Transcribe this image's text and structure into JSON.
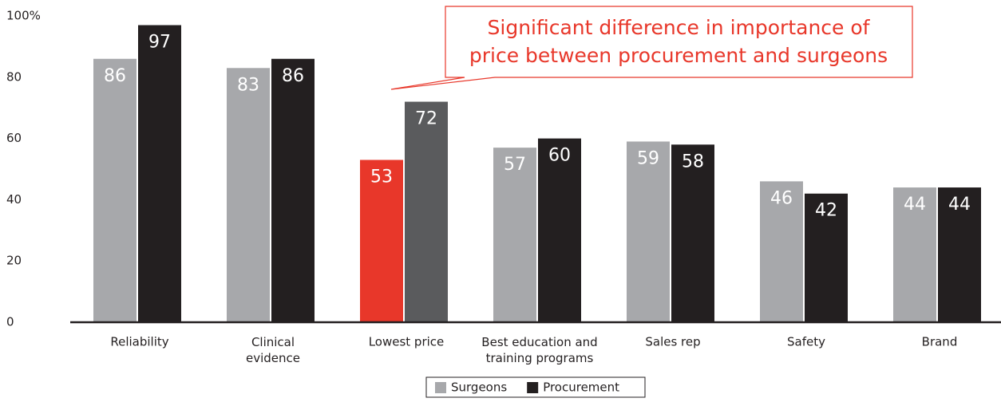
{
  "chart_data": {
    "type": "bar",
    "categories": [
      "Reliability",
      "Clinical\nevidence",
      "Lowest price",
      "Best education and\ntraining programs",
      "Sales rep",
      "Safety",
      "Brand"
    ],
    "series": [
      {
        "name": "Surgeons",
        "color": "#a7a8ab",
        "colors": [
          "#a7a8ab",
          "#a7a8ab",
          "#e8372a",
          "#a7a8ab",
          "#a7a8ab",
          "#a7a8ab",
          "#a7a8ab"
        ],
        "values": [
          86,
          83,
          53,
          57,
          59,
          46,
          44
        ]
      },
      {
        "name": "Procurement",
        "color": "#231f20",
        "colors": [
          "#231f20",
          "#231f20",
          "#5a5b5d",
          "#231f20",
          "#231f20",
          "#231f20",
          "#231f20"
        ],
        "values": [
          97,
          86,
          72,
          60,
          58,
          42,
          44
        ]
      }
    ],
    "ylim": [
      0,
      100
    ],
    "yticks": [
      0,
      20,
      40,
      60,
      80,
      {
        "value": 100,
        "label": "100%"
      }
    ],
    "annotation": [
      "Significant difference in importance of",
      "price between procurement and surgeons"
    ],
    "annotation_color": "#e8372a"
  }
}
